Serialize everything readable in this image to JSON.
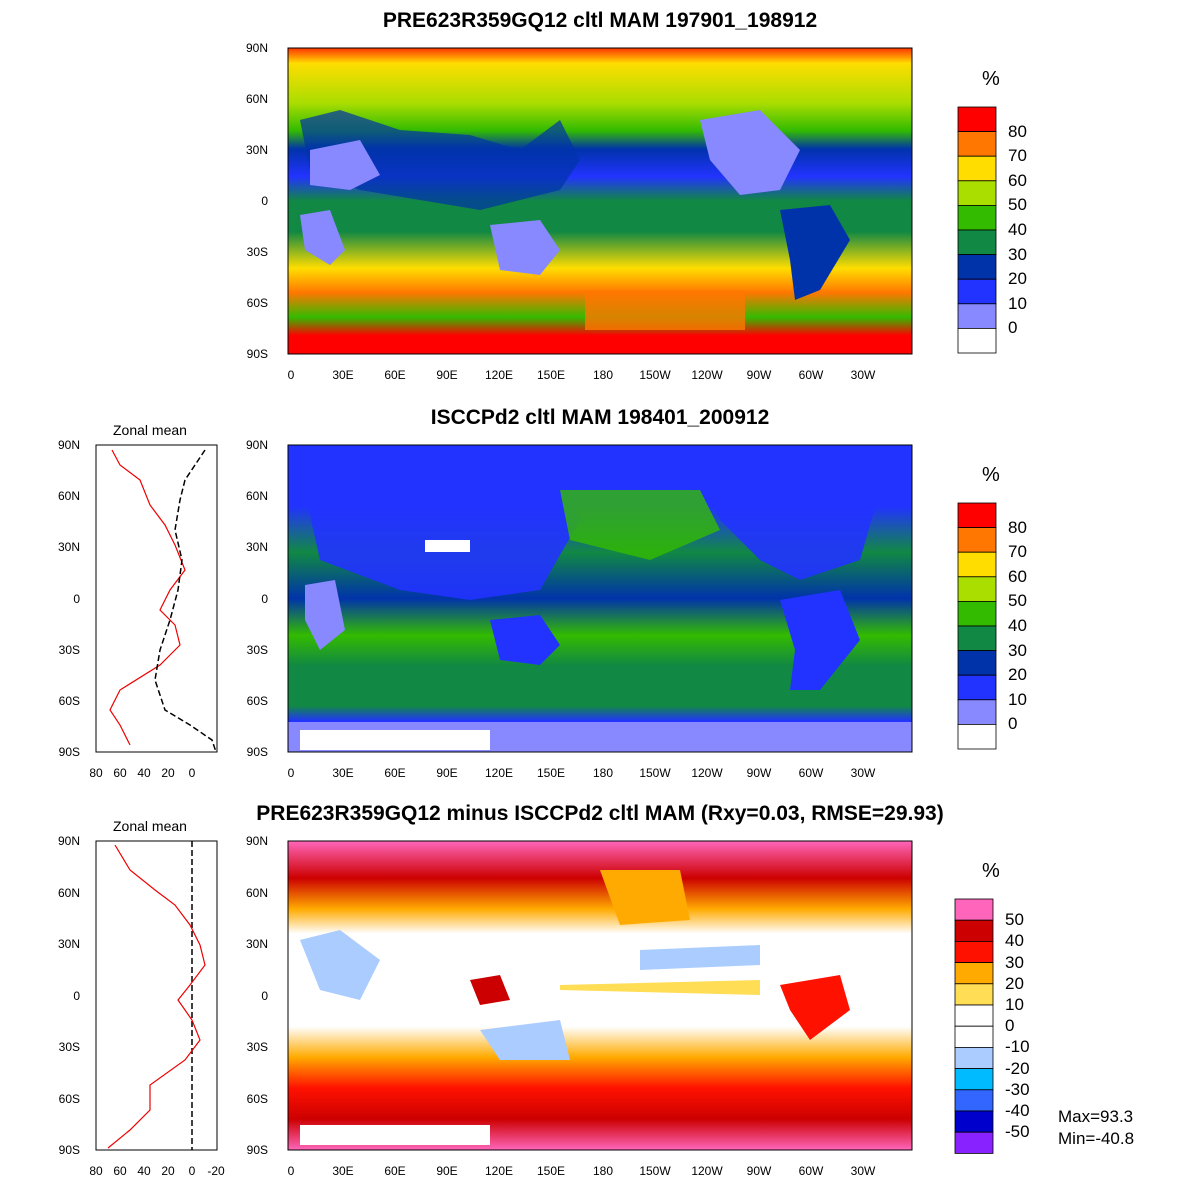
{
  "panels": [
    {
      "title": "PRE623R359GQ12 cltl MAM 197901_198912",
      "unit": "%"
    },
    {
      "title": "ISCCPd2 cltl MAM 198401_200912",
      "unit": "%",
      "profile_title": "Zonal mean"
    },
    {
      "title": "PRE623R359GQ12 minus ISCCPd2 cltl MAM (Rxy=0.03, RMSE=29.93)",
      "unit": "%",
      "profile_title": "Zonal mean"
    }
  ],
  "lat_ticks": [
    "90N",
    "60N",
    "30N",
    "0",
    "30S",
    "60S",
    "90S"
  ],
  "lon_ticks": [
    "0",
    "30E",
    "60E",
    "90E",
    "120E",
    "150E",
    "180",
    "150W",
    "120W",
    "90W",
    "60W",
    "30W"
  ],
  "profile_ticks_2": [
    "80",
    "60",
    "40",
    "20",
    "0"
  ],
  "profile_ticks_3": [
    "80",
    "60",
    "40",
    "20",
    "0",
    "-20"
  ],
  "colorbar_abs": {
    "labels": [
      "80",
      "70",
      "60",
      "50",
      "40",
      "30",
      "20",
      "10",
      "0"
    ],
    "colors": [
      "#ff0000",
      "#ff7700",
      "#ffdd00",
      "#aadd00",
      "#33bb00",
      "#118844",
      "#0033aa",
      "#2233ff",
      "#8888ff",
      "#ffffff"
    ]
  },
  "colorbar_diff": {
    "labels": [
      "50",
      "40",
      "30",
      "20",
      "10",
      "0",
      "-10",
      "-20",
      "-30",
      "-40",
      "-50"
    ],
    "colors": [
      "#ff66bb",
      "#cc0000",
      "#ff1100",
      "#ffaa00",
      "#ffdd55",
      "#ffffff",
      "#ffffff",
      "#aaccff",
      "#00bbff",
      "#3366ff",
      "#0000cc",
      "#8822ff"
    ]
  },
  "stats": {
    "max": "Max=93.3",
    "min": "Min=-40.8"
  }
}
